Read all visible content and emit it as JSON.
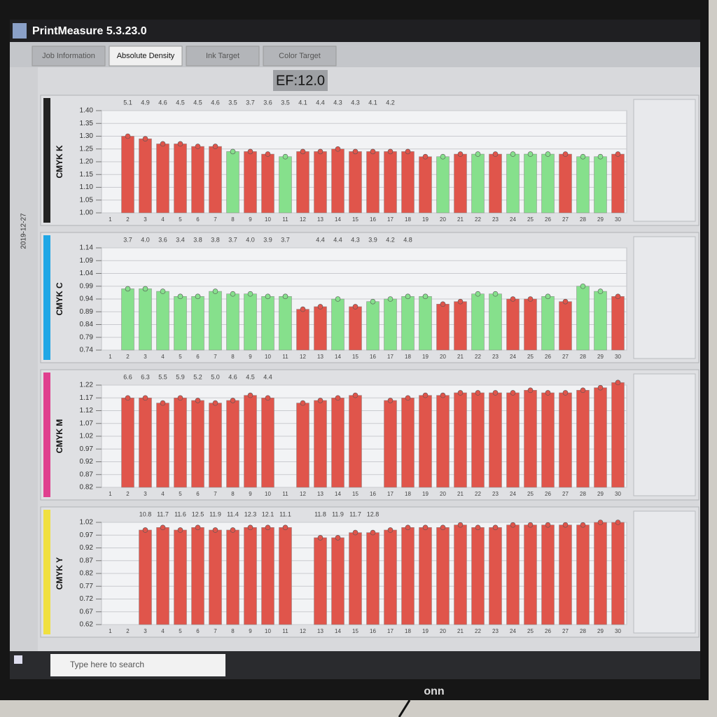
{
  "app": {
    "title": "PrintMeasure 5.3.23.0",
    "tabs": [
      "Job Information",
      "Absolute Density",
      "Ink Target",
      "Color Target"
    ],
    "ef": "EF:12.0",
    "job": "2019-12-27",
    "search": "Type here to search",
    "brand": "onn"
  },
  "chart_data": [
    {
      "type": "bar",
      "title": "CMYK K",
      "side_color": "#222222",
      "categories": [
        "1",
        "2",
        "3",
        "4",
        "5",
        "6",
        "7",
        "8",
        "9",
        "10",
        "11",
        "12",
        "13",
        "14",
        "15",
        "16",
        "17",
        "18",
        "19",
        "20",
        "21",
        "22",
        "23",
        "24",
        "25",
        "26",
        "27",
        "28",
        "29",
        "30"
      ],
      "values": [
        null,
        1.3,
        1.29,
        1.27,
        1.27,
        1.26,
        1.26,
        1.24,
        1.24,
        1.23,
        1.22,
        1.24,
        1.24,
        1.25,
        1.24,
        1.24,
        1.24,
        1.24,
        1.22,
        1.22,
        1.23,
        1.23,
        1.23,
        1.23,
        1.23,
        1.23,
        1.23,
        1.22,
        1.22,
        1.23
      ],
      "colors": [
        null,
        "#e0554b",
        "#e0554b",
        "#e0554b",
        "#e0554b",
        "#e0554b",
        "#e0554b",
        "#86e08c",
        "#e0554b",
        "#e0554b",
        "#86e08c",
        "#e0554b",
        "#e0554b",
        "#e0554b",
        "#e0554b",
        "#e0554b",
        "#e0554b",
        "#e0554b",
        "#e0554b",
        "#86e08c",
        "#e0554b",
        "#86e08c",
        "#e0554b",
        "#86e08c",
        "#86e08c",
        "#86e08c",
        "#e0554b",
        "#86e08c",
        "#86e08c",
        "#e0554b"
      ],
      "top_labels": [
        null,
        "5.1",
        "4.9",
        "4.6",
        "4.5",
        "4.5",
        "4.6",
        "3.5",
        "3.7",
        "3.6",
        "3.5",
        "4.1",
        "4.4",
        "4.3",
        "4.3",
        "4.1",
        "4.2",
        null,
        null,
        null,
        null,
        null,
        null,
        null,
        null,
        null,
        null,
        null,
        null,
        null
      ],
      "ylim": [
        1.0,
        1.4
      ],
      "yticks": [
        {
          "value": 1.0,
          "label": "1.00"
        },
        1.05,
        {
          "value": 1.1,
          "label": "1.10"
        },
        1.15,
        {
          "value": 1.2,
          "label": "1.20"
        },
        1.25,
        {
          "value": 1.3,
          "label": "1.30"
        },
        1.35,
        {
          "value": 1.4,
          "label": "1.40"
        }
      ],
      "grid": true
    },
    {
      "type": "bar",
      "title": "CMYK C",
      "side_color": "#1fa7e6",
      "categories": [
        "1",
        "2",
        "3",
        "4",
        "5",
        "6",
        "7",
        "8",
        "9",
        "10",
        "11",
        "12",
        "13",
        "14",
        "15",
        "16",
        "17",
        "18",
        "19",
        "20",
        "21",
        "22",
        "23",
        "24",
        "25",
        "26",
        "27",
        "28",
        "29",
        "30"
      ],
      "values": [
        null,
        0.98,
        0.98,
        0.97,
        0.95,
        0.95,
        0.97,
        0.96,
        0.96,
        0.95,
        0.95,
        0.9,
        0.91,
        0.94,
        0.91,
        0.93,
        0.94,
        0.95,
        0.95,
        0.92,
        0.93,
        0.96,
        0.96,
        0.94,
        0.94,
        0.95,
        0.93,
        0.99,
        0.97,
        0.95
      ],
      "colors": [
        null,
        "#86e08c",
        "#86e08c",
        "#86e08c",
        "#86e08c",
        "#86e08c",
        "#86e08c",
        "#86e08c",
        "#86e08c",
        "#86e08c",
        "#86e08c",
        "#e0554b",
        "#e0554b",
        "#86e08c",
        "#e0554b",
        "#86e08c",
        "#86e08c",
        "#86e08c",
        "#86e08c",
        "#e0554b",
        "#e0554b",
        "#86e08c",
        "#86e08c",
        "#e0554b",
        "#e0554b",
        "#86e08c",
        "#e0554b",
        "#86e08c",
        "#86e08c",
        "#e0554b"
      ],
      "top_labels": [
        null,
        "3.7",
        "4.0",
        "3.6",
        "3.4",
        "3.8",
        "3.8",
        "3.7",
        "4.0",
        "3.9",
        "3.7",
        null,
        "4.4",
        "4.4",
        "4.3",
        "3.9",
        "4.2",
        "4.8",
        null,
        null,
        null,
        null,
        null,
        null,
        null,
        null,
        null,
        null,
        null,
        null
      ],
      "ylim": [
        0.74,
        1.14
      ],
      "yticks": [
        0.74,
        0.79,
        0.84,
        0.89,
        0.94,
        0.99,
        1.04,
        1.09,
        1.14
      ],
      "grid": true
    },
    {
      "type": "bar",
      "title": "CMYK M",
      "side_color": "#e0408f",
      "categories": [
        "1",
        "2",
        "3",
        "4",
        "5",
        "6",
        "7",
        "8",
        "9",
        "10",
        "11",
        "12",
        "13",
        "14",
        "15",
        "16",
        "17",
        "18",
        "19",
        "20",
        "21",
        "22",
        "23",
        "24",
        "25",
        "26",
        "27",
        "28",
        "29",
        "30"
      ],
      "values": [
        null,
        1.17,
        1.17,
        1.15,
        1.17,
        1.16,
        1.15,
        1.16,
        1.18,
        1.17,
        null,
        1.15,
        1.16,
        1.17,
        1.18,
        null,
        1.16,
        1.17,
        1.18,
        1.18,
        1.19,
        1.19,
        1.19,
        1.19,
        1.2,
        1.19,
        1.19,
        1.2,
        1.21,
        1.23
      ],
      "color": "#e0554b",
      "top_labels": [
        null,
        "6.6",
        "6.3",
        "5.5",
        "5.9",
        "5.2",
        "5.0",
        "4.6",
        "4.5",
        "4.4",
        null,
        null,
        null,
        null,
        null,
        null,
        null,
        null,
        null,
        null,
        null,
        null,
        null,
        null,
        null,
        null,
        null,
        null,
        null,
        null
      ],
      "ylim": [
        0.82,
        1.22
      ],
      "yticks": [
        0.82,
        0.87,
        0.92,
        0.97,
        1.02,
        1.07,
        1.12,
        1.17,
        1.22
      ],
      "grid": true
    },
    {
      "type": "bar",
      "title": "CMYK Y",
      "side_color": "#f0e040",
      "categories": [
        "1",
        "2",
        "3",
        "4",
        "5",
        "6",
        "7",
        "8",
        "9",
        "10",
        "11",
        "12",
        "13",
        "14",
        "15",
        "16",
        "17",
        "18",
        "19",
        "20",
        "21",
        "22",
        "23",
        "24",
        "25",
        "26",
        "27",
        "28",
        "29",
        "30"
      ],
      "values": [
        null,
        null,
        0.99,
        1.0,
        0.99,
        1.0,
        0.99,
        0.99,
        1.0,
        1.0,
        1.0,
        null,
        0.96,
        0.96,
        0.98,
        0.98,
        0.99,
        1.0,
        1.0,
        1.0,
        1.01,
        1.0,
        1.0,
        1.01,
        1.01,
        1.01,
        1.01,
        1.01,
        1.02,
        1.02
      ],
      "color": "#e0554b",
      "top_labels": [
        null,
        null,
        "10.8",
        "11.7",
        "11.6",
        "12.5",
        "11.9",
        "11.4",
        "12.3",
        "12.1",
        "11.1",
        null,
        "11.8",
        "11.9",
        "11.7",
        "12.8",
        null,
        null,
        null,
        null,
        null,
        null,
        null,
        null,
        null,
        null,
        null,
        null,
        null,
        null
      ],
      "ylim": [
        0.62,
        1.02
      ],
      "yticks": [
        0.62,
        0.67,
        0.72,
        0.77,
        0.82,
        0.87,
        0.92,
        0.97,
        1.02
      ],
      "grid": true
    }
  ]
}
